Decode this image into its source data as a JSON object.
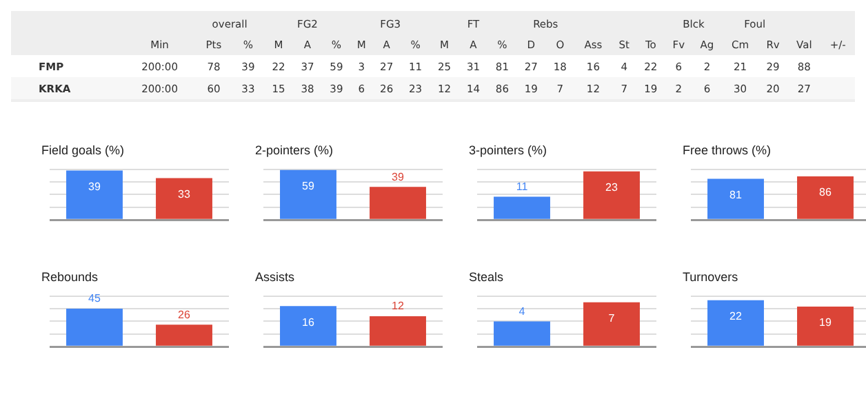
{
  "chart_data": [
    {
      "type": "other",
      "annotations": [
        "overall",
        "FG2",
        "FG3",
        "FT",
        "Rebs",
        "Blck",
        "Foul"
      ],
      "categories": [
        "Min",
        "Pts",
        "%",
        "M",
        "A",
        "%",
        "M",
        "A",
        "%",
        "M",
        "A",
        "%",
        "D",
        "O",
        "Ass",
        "St",
        "To",
        "Fv",
        "Ag",
        "Cm",
        "Rv",
        "Val",
        "+/-"
      ],
      "y_categories": [
        "FMP",
        "KRKA"
      ],
      "cell_labels": [
        [
          "200:00",
          "78",
          "39",
          "22",
          "37",
          "59",
          "3",
          "27",
          "11",
          "25",
          "31",
          "81",
          "27",
          "18",
          "16",
          "4",
          "22",
          "6",
          "2",
          "21",
          "29",
          "88",
          null
        ],
        [
          "200:00",
          "60",
          "33",
          "15",
          "38",
          "39",
          "6",
          "26",
          "23",
          "12",
          "14",
          "86",
          "19",
          "7",
          "12",
          "7",
          "19",
          "2",
          "6",
          "30",
          "20",
          "27",
          null
        ]
      ]
    },
    {
      "type": "bar",
      "title": "Field goals (%)",
      "categories": [
        null,
        null
      ],
      "values": [
        39,
        33
      ],
      "colors": [
        "#4285f4",
        "#db4437"
      ],
      "data_labels": true,
      "grid": "y",
      "ylim": [
        0,
        40
      ],
      "yticks": [
        {
          "value": 0,
          "label": null
        },
        {
          "value": 10,
          "label": null
        },
        {
          "value": 20,
          "label": null
        },
        {
          "value": 30,
          "label": null
        },
        {
          "value": 40,
          "label": null
        }
      ]
    },
    {
      "type": "bar",
      "title": "2-pointers (%)",
      "categories": [
        null,
        null
      ],
      "values": [
        59,
        39
      ],
      "colors": [
        "#4285f4",
        "#db4437"
      ],
      "data_labels": true,
      "grid": "y",
      "ylim": [
        0,
        60
      ],
      "yticks": [
        {
          "value": 0,
          "label": null
        },
        {
          "value": 15,
          "label": null
        },
        {
          "value": 30,
          "label": null
        },
        {
          "value": 45,
          "label": null
        },
        {
          "value": 60,
          "label": null
        }
      ]
    },
    {
      "type": "bar",
      "title": "3-pointers (%)",
      "categories": [
        null,
        null
      ],
      "values": [
        11,
        23
      ],
      "colors": [
        "#4285f4",
        "#db4437"
      ],
      "data_labels": true,
      "grid": "y",
      "ylim": [
        0,
        24
      ],
      "yticks": [
        {
          "value": 0,
          "label": null
        },
        {
          "value": 6,
          "label": null
        },
        {
          "value": 12,
          "label": null
        },
        {
          "value": 18,
          "label": null
        },
        {
          "value": 24,
          "label": null
        }
      ]
    },
    {
      "type": "bar",
      "title": "Free throws (%)",
      "categories": [
        null,
        null
      ],
      "values": [
        81,
        86
      ],
      "colors": [
        "#4285f4",
        "#db4437"
      ],
      "data_labels": true,
      "grid": "y",
      "ylim": [
        0,
        100
      ],
      "yticks": [
        {
          "value": 0,
          "label": null
        },
        {
          "value": 25,
          "label": null
        },
        {
          "value": 50,
          "label": null
        },
        {
          "value": 75,
          "label": null
        },
        {
          "value": 100,
          "label": null
        }
      ]
    },
    {
      "type": "bar",
      "title": "Rebounds",
      "categories": [
        null,
        null
      ],
      "values": [
        45,
        26
      ],
      "colors": [
        "#4285f4",
        "#db4437"
      ],
      "data_labels": true,
      "grid": "y",
      "ylim": [
        0,
        60
      ],
      "yticks": [
        {
          "value": 0,
          "label": null
        },
        {
          "value": 15,
          "label": null
        },
        {
          "value": 30,
          "label": null
        },
        {
          "value": 45,
          "label": null
        },
        {
          "value": 60,
          "label": null
        }
      ]
    },
    {
      "type": "bar",
      "title": "Assists",
      "categories": [
        null,
        null
      ],
      "values": [
        16,
        12
      ],
      "colors": [
        "#4285f4",
        "#db4437"
      ],
      "data_labels": true,
      "grid": "y",
      "ylim": [
        0,
        20
      ],
      "yticks": [
        {
          "value": 0,
          "label": null
        },
        {
          "value": 5,
          "label": null
        },
        {
          "value": 10,
          "label": null
        },
        {
          "value": 15,
          "label": null
        },
        {
          "value": 20,
          "label": null
        }
      ]
    },
    {
      "type": "bar",
      "title": "Steals",
      "categories": [
        null,
        null
      ],
      "values": [
        4,
        7
      ],
      "colors": [
        "#4285f4",
        "#db4437"
      ],
      "data_labels": true,
      "grid": "y",
      "ylim": [
        0,
        8
      ],
      "yticks": [
        {
          "value": 0,
          "label": null
        },
        {
          "value": 2,
          "label": null
        },
        {
          "value": 4,
          "label": null
        },
        {
          "value": 6,
          "label": null
        },
        {
          "value": 8,
          "label": null
        }
      ]
    },
    {
      "type": "bar",
      "title": "Turnovers",
      "categories": [
        null,
        null
      ],
      "values": [
        22,
        19
      ],
      "colors": [
        "#4285f4",
        "#db4437"
      ],
      "data_labels": true,
      "grid": "y",
      "ylim": [
        0,
        24
      ],
      "yticks": [
        {
          "value": 0,
          "label": null
        },
        {
          "value": 6,
          "label": null
        },
        {
          "value": 12,
          "label": null
        },
        {
          "value": 18,
          "label": null
        },
        {
          "value": 24,
          "label": null
        }
      ]
    }
  ]
}
